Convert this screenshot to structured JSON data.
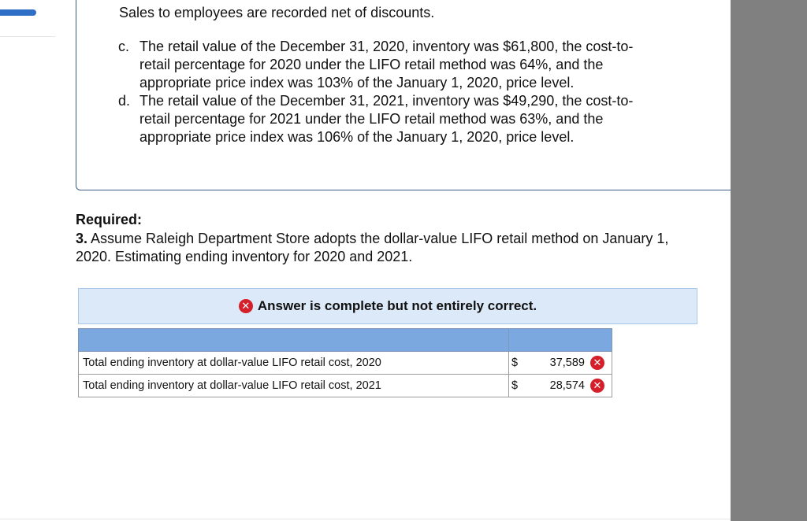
{
  "problem": {
    "intro_line": "Sales to employees are recorded net of discounts.",
    "items": [
      {
        "marker": "c.",
        "lines": [
          "The retail value of the December 31, 2020, inventory was $61,800, the cost-to-",
          "retail percentage for 2020 under the LIFO retail method was 64%, and the",
          "appropriate price index was 103% of the January 1, 2020, price level."
        ]
      },
      {
        "marker": "d.",
        "lines": [
          "The retail value of the December 31, 2021, inventory was $49,290, the cost-to-",
          "retail percentage for 2021 under the LIFO retail method was 63%, and the",
          "appropriate price index was 106% of the January 1, 2020, price level."
        ]
      }
    ]
  },
  "required": {
    "label": "Required:",
    "number": "3.",
    "line1": "Assume Raleigh Department Store adopts the dollar-value LIFO retail method on January 1,",
    "line2": "2020. Estimating ending inventory for 2020 and 2021."
  },
  "feedback": {
    "icon": "incorrect-x-icon",
    "message": "Answer is complete but not entirely correct."
  },
  "answer_table": {
    "header": "",
    "rows": [
      {
        "label": "Total ending inventory at dollar-value LIFO retail cost, 2020",
        "currency": "$",
        "value": "37,589",
        "status": "incorrect"
      },
      {
        "label": "Total ending inventory at dollar-value LIFO retail cost, 2021",
        "currency": "$",
        "value": "28,574",
        "status": "incorrect"
      }
    ]
  },
  "colors": {
    "incorrect": "#d4202a",
    "table_header": "#7ba9df",
    "banner_bg": "#dbe9f8",
    "side_panel": "#808080"
  }
}
